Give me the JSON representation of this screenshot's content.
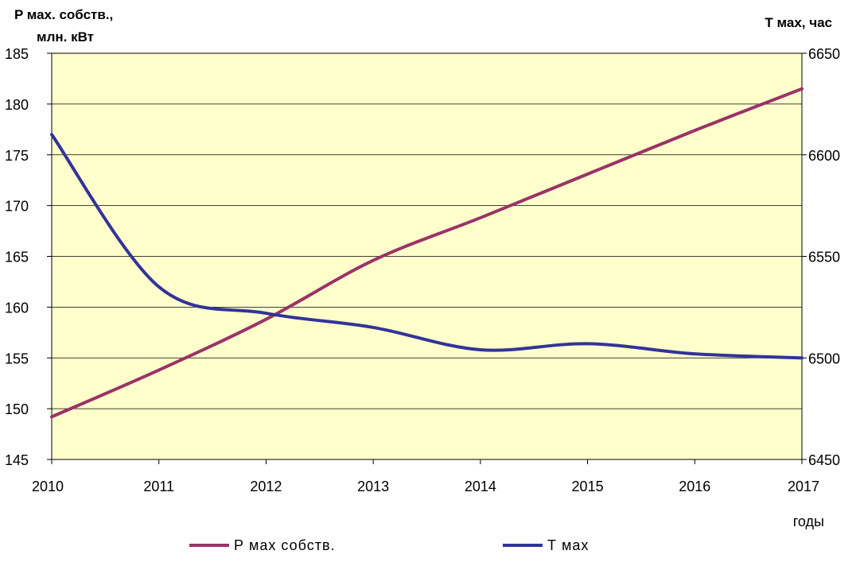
{
  "chart_data": {
    "type": "line",
    "x": [
      2010,
      2011,
      2012,
      2013,
      2014,
      2015,
      2016,
      2017
    ],
    "x_tick_labels": [
      "2010",
      "2011",
      "2012",
      "2013",
      "2014",
      "2015",
      "2016",
      "2017"
    ],
    "xlabel": "годы",
    "y_left": {
      "label_line1": "P мах. собств.,",
      "label_line2": "млн. кВт",
      "ylim": [
        145,
        185
      ],
      "ticks": [
        145,
        150,
        155,
        160,
        165,
        170,
        175,
        180,
        185
      ]
    },
    "y_right": {
      "label": "T мах, час",
      "ylim": [
        6450,
        6650
      ],
      "ticks": [
        6450,
        6500,
        6550,
        6600,
        6650
      ]
    },
    "series": [
      {
        "name": "Р мах собств.",
        "axis": "left",
        "color": "#993366",
        "values": [
          149.2,
          153.8,
          158.8,
          164.6,
          168.8,
          173.1,
          177.4,
          181.5
        ]
      },
      {
        "name": "Т мах",
        "axis": "right",
        "color": "#333399",
        "values": [
          6610,
          6535,
          6522,
          6515,
          6504,
          6507,
          6502,
          6500
        ]
      }
    ],
    "plot_background": "#ffffcc",
    "grid": true,
    "legend": "bottom"
  }
}
